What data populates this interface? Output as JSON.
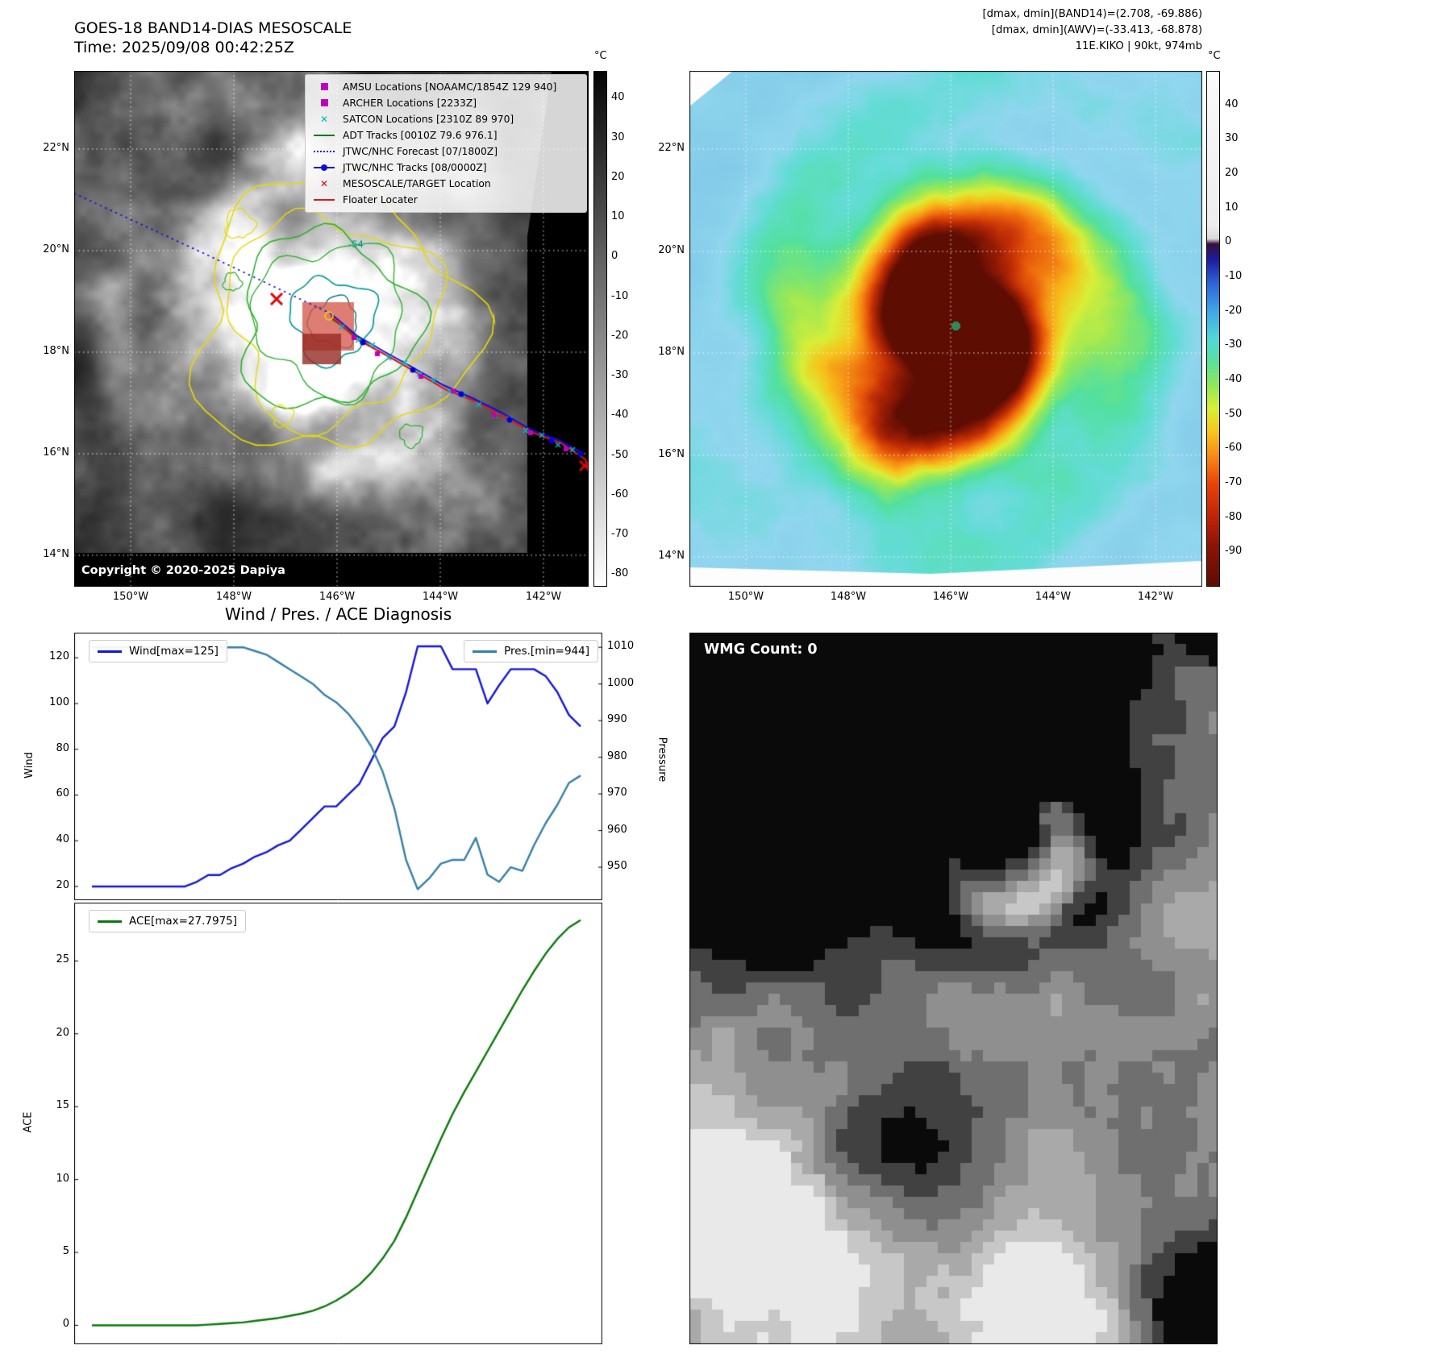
{
  "header": {
    "band14_title": "GOES-18 BAND14-DIAS MESOSCALE",
    "band14_time": "Time: 2025/09/08 00:42:25Z",
    "right_line1": "[dmax, dmin](BAND14)=(2.708, -69.886)",
    "right_line2": "[dmax, dmin](AWV)=(-33.413, -68.878)",
    "right_line3": "11E.KIKO | 90kt, 974mb"
  },
  "band14_panel": {
    "colorbar_unit": "°C",
    "colorbar_ticks": [
      40,
      30,
      20,
      10,
      0,
      -10,
      -20,
      -30,
      -40,
      -50,
      -60,
      -70,
      -80
    ],
    "lat_ticks": [
      "22°N",
      "20°N",
      "18°N",
      "16°N",
      "14°N"
    ],
    "lon_ticks": [
      "150°W",
      "148°W",
      "146°W",
      "144°W",
      "142°W"
    ],
    "contour_label": "-54",
    "copyright": "Copyright © 2020-2025 Dapiya",
    "legend_items": [
      {
        "label": "AMSU Locations [NOAAMC/1854Z 129 940]",
        "marker": "square",
        "color": "#c000c0"
      },
      {
        "label": "ARCHER Locations [2233Z]",
        "marker": "square",
        "color": "#c000c0"
      },
      {
        "label": "SATCON Locations [2310Z 89 970]",
        "marker": "x",
        "color": "#00b8b8"
      },
      {
        "label": "ADT Tracks [0010Z 79.6 976.1]",
        "marker": "line",
        "color": "#0a7a0a"
      },
      {
        "label": "JTWC/NHC Forecast [07/1800Z]",
        "marker": "dotted",
        "color": "#1414dd"
      },
      {
        "label": "JTWC/NHC Tracks [08/0000Z]",
        "marker": "line-dot",
        "color": "#1010dd"
      },
      {
        "label": "MESOSCALE/TARGET Location",
        "marker": "x",
        "color": "#e80000"
      },
      {
        "label": "Floater Locater",
        "marker": "line",
        "color": "#e81212"
      }
    ]
  },
  "awv_panel": {
    "colorbar_unit": "°C",
    "colorbar_ticks": [
      40,
      30,
      20,
      10,
      0,
      -10,
      -20,
      -30,
      -40,
      -50,
      -60,
      -70,
      -80,
      -90
    ],
    "lat_ticks": [
      "22°N",
      "20°N",
      "18°N",
      "16°N",
      "14°N"
    ],
    "lon_ticks": [
      "150°W",
      "148°W",
      "146°W",
      "144°W",
      "142°W"
    ]
  },
  "diagnosis": {
    "title": "Wind / Pres. / ACE Diagnosis"
  },
  "wmg_panel": {
    "count_label": "WMG Count: 0"
  },
  "chart_data": [
    {
      "type": "line",
      "title": "Wind / Pres. / ACE Diagnosis",
      "ylabel_left": "Wind",
      "ylabel_right": "Pressure",
      "ylim_left": [
        14,
        131
      ],
      "ylim_right": [
        941,
        1014
      ],
      "yticks_left": [
        20,
        40,
        60,
        80,
        100,
        120
      ],
      "yticks_right": [
        950,
        960,
        970,
        980,
        990,
        1000,
        1010
      ],
      "legend": [
        "Wind[max=125]",
        "Pres.[min=944]"
      ],
      "series": [
        {
          "name": "Wind[max=125]",
          "axis": "left",
          "color": "#1515dd",
          "values": [
            20,
            20,
            20,
            20,
            20,
            20,
            20,
            20,
            20,
            22,
            25,
            25,
            28,
            30,
            33,
            35,
            38,
            40,
            45,
            50,
            55,
            55,
            60,
            65,
            75,
            85,
            90,
            105,
            125,
            125,
            125,
            115,
            115,
            115,
            100,
            108,
            115,
            115,
            115,
            112,
            105,
            95,
            90
          ]
        },
        {
          "name": "Pres.[min=944]",
          "axis": "right",
          "color": "#3580a8",
          "values": [
            1010,
            1010,
            1010,
            1010,
            1010,
            1010,
            1010,
            1010,
            1010,
            1010,
            1010,
            1010,
            1010,
            1010,
            1009,
            1008,
            1006,
            1004,
            1002,
            1000,
            997,
            995,
            992,
            988,
            983,
            976,
            966,
            952,
            944,
            947,
            951,
            952,
            952,
            958,
            948,
            946,
            950,
            949,
            956,
            962,
            967,
            973,
            975
          ]
        }
      ]
    },
    {
      "type": "line",
      "ylabel": "ACE",
      "ylim": [
        -1.3,
        29
      ],
      "yticks": [
        0,
        5,
        10,
        15,
        20,
        25
      ],
      "legend": [
        "ACE[max=27.7975]"
      ],
      "series": [
        {
          "name": "ACE[max=27.7975]",
          "color": "#0a7a0a",
          "values": [
            0,
            0,
            0,
            0,
            0,
            0,
            0,
            0,
            0,
            0,
            0.05,
            0.1,
            0.15,
            0.2,
            0.3,
            0.4,
            0.5,
            0.65,
            0.8,
            1.0,
            1.3,
            1.7,
            2.2,
            2.8,
            3.6,
            4.6,
            5.8,
            7.4,
            9.2,
            11.0,
            12.8,
            14.5,
            16.0,
            17.4,
            18.8,
            20.2,
            21.6,
            23.0,
            24.3,
            25.5,
            26.5,
            27.3,
            27.8
          ]
        }
      ]
    }
  ]
}
